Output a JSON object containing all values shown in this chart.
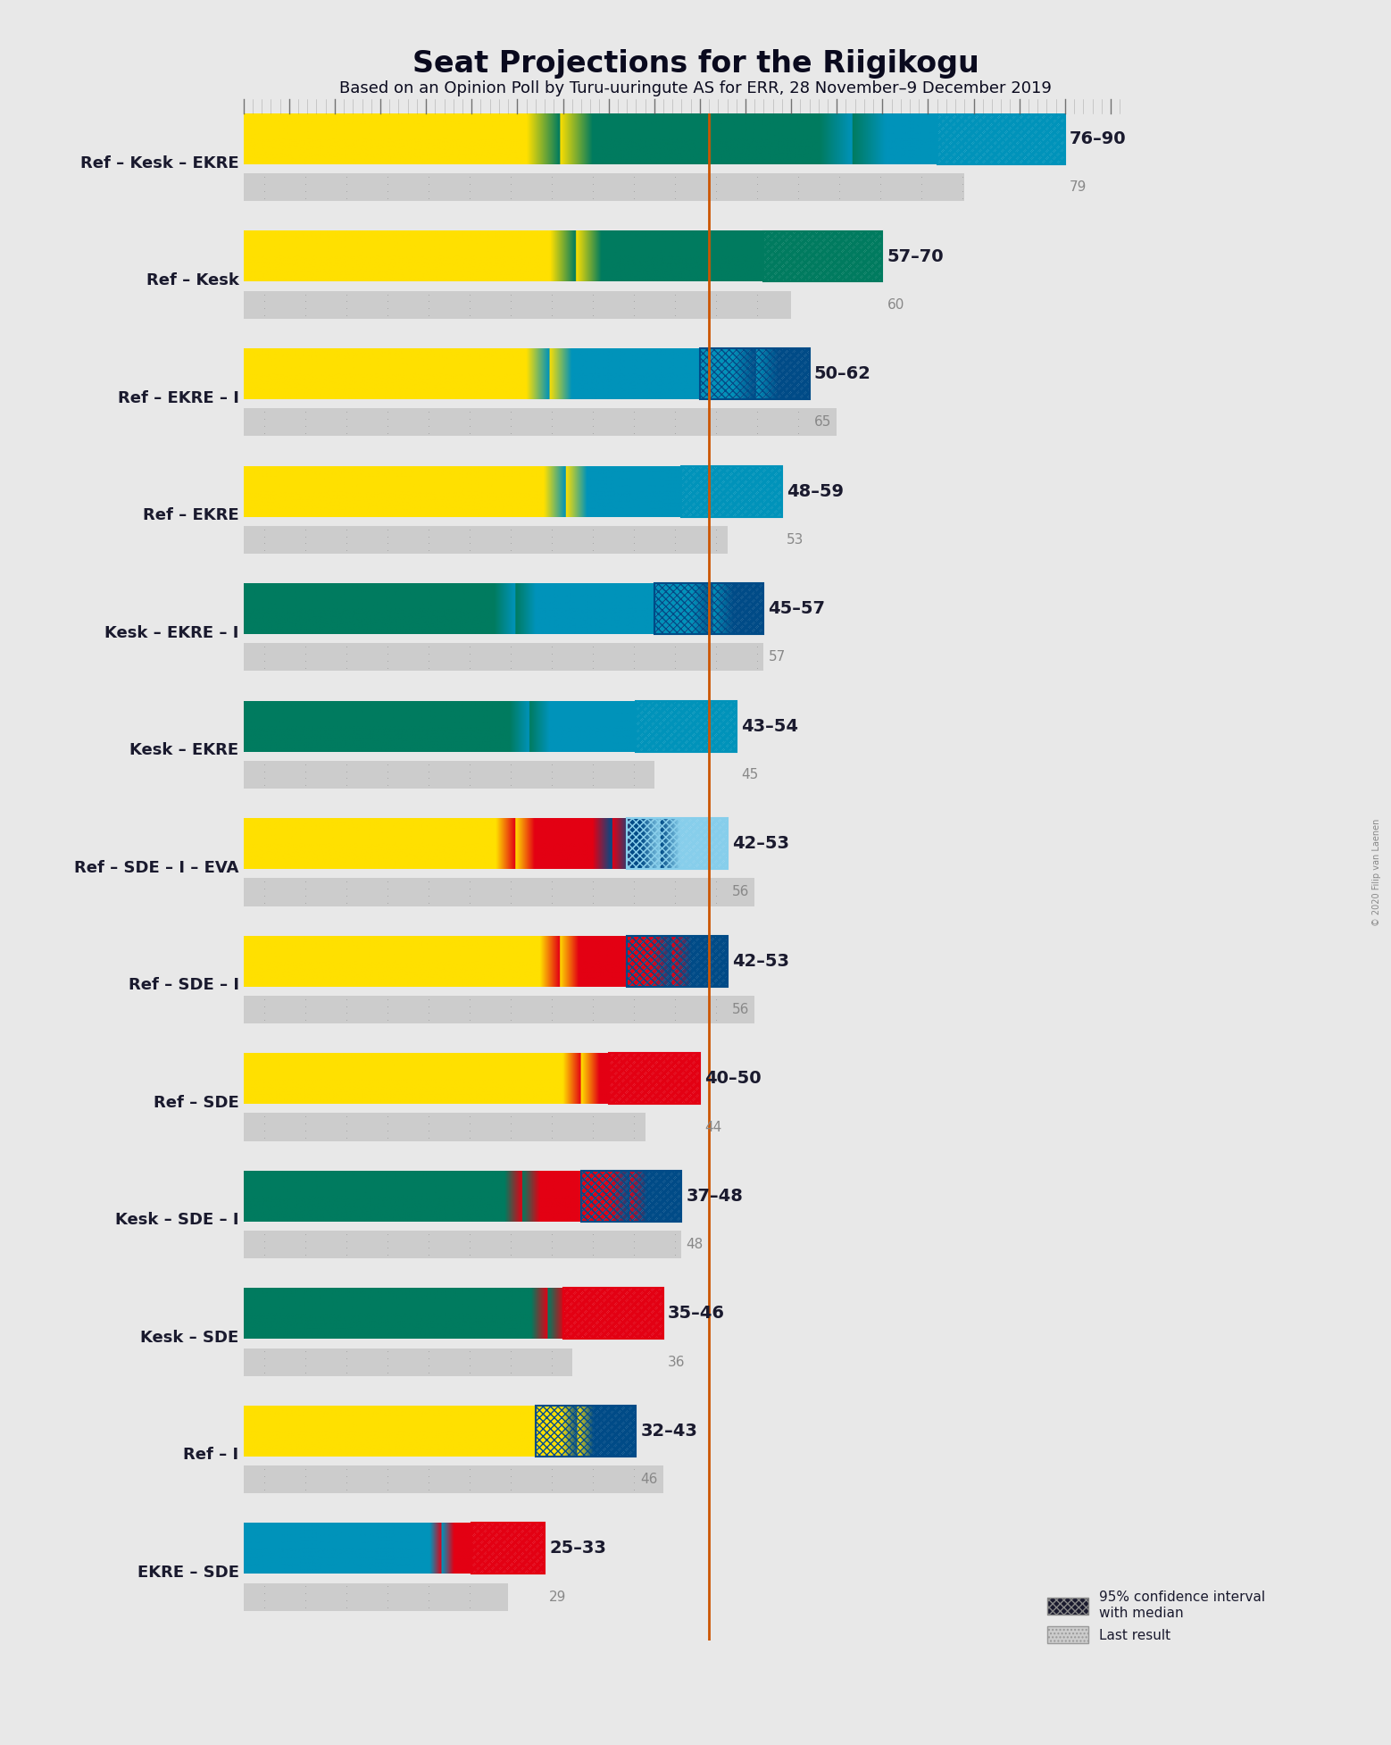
{
  "title": "Seat Projections for the Riigikogu",
  "subtitle": "Based on an Opinion Poll by Turu-uuringute AS for ERR, 28 November–9 December 2019",
  "copyright": "© 2020 Filip van Laenen",
  "majority_line": 51,
  "xlim": [
    0,
    96
  ],
  "background_color": "#e8e8e8",
  "coalitions": [
    {
      "name": "Ref – Kesk – EKRE",
      "underline": false,
      "range_low": 76,
      "range_high": 90,
      "median": 79,
      "last_result": 79,
      "parties": [
        {
          "name": "Ref",
          "seats": 28,
          "color": "#FFE000"
        },
        {
          "name": "Kesk",
          "seats": 26,
          "color": "#007B5F"
        },
        {
          "name": "EKRE",
          "seats": 19,
          "color": "#0093BA"
        }
      ]
    },
    {
      "name": "Ref – Kesk",
      "underline": false,
      "range_low": 57,
      "range_high": 70,
      "median": 60,
      "last_result": 60,
      "parties": [
        {
          "name": "Ref",
          "seats": 28,
          "color": "#FFE000"
        },
        {
          "name": "Kesk",
          "seats": 26,
          "color": "#007B5F"
        }
      ]
    },
    {
      "name": "Ref – EKRE – I",
      "underline": false,
      "range_low": 50,
      "range_high": 62,
      "median": 65,
      "last_result": 65,
      "parties": [
        {
          "name": "Ref",
          "seats": 28,
          "color": "#FFE000"
        },
        {
          "name": "EKRE",
          "seats": 19,
          "color": "#0093BA"
        },
        {
          "name": "I",
          "seats": 5,
          "color": "#004B87"
        }
      ]
    },
    {
      "name": "Ref – EKRE",
      "underline": false,
      "range_low": 48,
      "range_high": 59,
      "median": 53,
      "last_result": 53,
      "parties": [
        {
          "name": "Ref",
          "seats": 28,
          "color": "#FFE000"
        },
        {
          "name": "EKRE",
          "seats": 19,
          "color": "#0093BA"
        }
      ]
    },
    {
      "name": "Kesk – EKRE – I",
      "underline": true,
      "range_low": 45,
      "range_high": 57,
      "median": 57,
      "last_result": 57,
      "parties": [
        {
          "name": "Kesk",
          "seats": 26,
          "color": "#007B5F"
        },
        {
          "name": "EKRE",
          "seats": 19,
          "color": "#0093BA"
        },
        {
          "name": "I",
          "seats": 5,
          "color": "#004B87"
        }
      ]
    },
    {
      "name": "Kesk – EKRE",
      "underline": false,
      "range_low": 43,
      "range_high": 54,
      "median": 45,
      "last_result": 45,
      "parties": [
        {
          "name": "Kesk",
          "seats": 26,
          "color": "#007B5F"
        },
        {
          "name": "EKRE",
          "seats": 19,
          "color": "#0093BA"
        }
      ]
    },
    {
      "name": "Ref – SDE – I – EVA",
      "underline": false,
      "range_low": 42,
      "range_high": 53,
      "median": 56,
      "last_result": 56,
      "parties": [
        {
          "name": "Ref",
          "seats": 28,
          "color": "#FFE000"
        },
        {
          "name": "SDE",
          "seats": 10,
          "color": "#E30013"
        },
        {
          "name": "I",
          "seats": 5,
          "color": "#004B87"
        },
        {
          "name": "EVA",
          "seats": 7,
          "color": "#87CEEB"
        }
      ]
    },
    {
      "name": "Ref – SDE – I",
      "underline": false,
      "range_low": 42,
      "range_high": 53,
      "median": 56,
      "last_result": 56,
      "parties": [
        {
          "name": "Ref",
          "seats": 28,
          "color": "#FFE000"
        },
        {
          "name": "SDE",
          "seats": 10,
          "color": "#E30013"
        },
        {
          "name": "I",
          "seats": 5,
          "color": "#004B87"
        }
      ]
    },
    {
      "name": "Ref – SDE",
      "underline": false,
      "range_low": 40,
      "range_high": 50,
      "median": 44,
      "last_result": 44,
      "parties": [
        {
          "name": "Ref",
          "seats": 28,
          "color": "#FFE000"
        },
        {
          "name": "SDE",
          "seats": 10,
          "color": "#E30013"
        }
      ]
    },
    {
      "name": "Kesk – SDE – I",
      "underline": false,
      "range_low": 37,
      "range_high": 48,
      "median": 48,
      "last_result": 48,
      "parties": [
        {
          "name": "Kesk",
          "seats": 26,
          "color": "#007B5F"
        },
        {
          "name": "SDE",
          "seats": 10,
          "color": "#E30013"
        },
        {
          "name": "I",
          "seats": 5,
          "color": "#004B87"
        }
      ]
    },
    {
      "name": "Kesk – SDE",
      "underline": false,
      "range_low": 35,
      "range_high": 46,
      "median": 36,
      "last_result": 36,
      "parties": [
        {
          "name": "Kesk",
          "seats": 26,
          "color": "#007B5F"
        },
        {
          "name": "SDE",
          "seats": 10,
          "color": "#E30013"
        }
      ]
    },
    {
      "name": "Ref – I",
      "underline": false,
      "range_low": 32,
      "range_high": 43,
      "median": 46,
      "last_result": 46,
      "parties": [
        {
          "name": "Ref",
          "seats": 28,
          "color": "#FFE000"
        },
        {
          "name": "I",
          "seats": 5,
          "color": "#004B87"
        }
      ]
    },
    {
      "name": "EKRE – SDE",
      "underline": false,
      "range_low": 25,
      "range_high": 33,
      "median": 29,
      "last_result": 29,
      "parties": [
        {
          "name": "EKRE",
          "seats": 19,
          "color": "#0093BA"
        },
        {
          "name": "SDE",
          "seats": 10,
          "color": "#E30013"
        }
      ]
    }
  ],
  "orange_line_color": "#CC5500",
  "tick_color": "#333333",
  "label_color": "#1a1a2e",
  "median_color": "#888888",
  "last_bar_bg": "#cccccc",
  "last_bar_dot_color": "#888888"
}
